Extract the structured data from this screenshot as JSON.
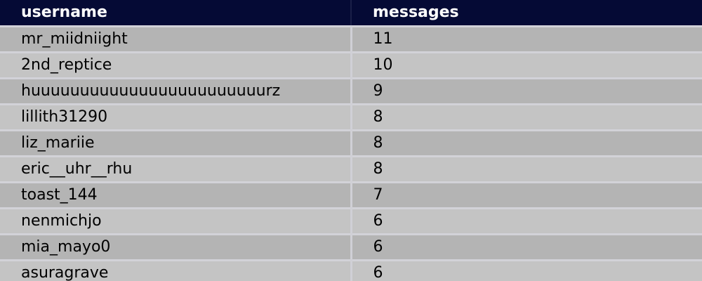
{
  "table": {
    "columns": [
      "username",
      "messages"
    ],
    "rows": [
      [
        "mr_miidniight",
        "11"
      ],
      [
        "2nd_reptice",
        "10"
      ],
      [
        "huuuuuuuuuuuuuuuuuuuuuuuurz",
        "9"
      ],
      [
        "lillith31290",
        "8"
      ],
      [
        "liz_mariie",
        "8"
      ],
      [
        "eric__uhr__rhu",
        "8"
      ],
      [
        "toast_144",
        "7"
      ],
      [
        "nenmichjo",
        "6"
      ],
      [
        "mia_mayo0",
        "6"
      ],
      [
        "asuragrave",
        "6"
      ]
    ]
  },
  "colors": {
    "header_bg": "#050a35",
    "row_dark": "#b4b4b4",
    "row_light": "#c4c4c4"
  }
}
